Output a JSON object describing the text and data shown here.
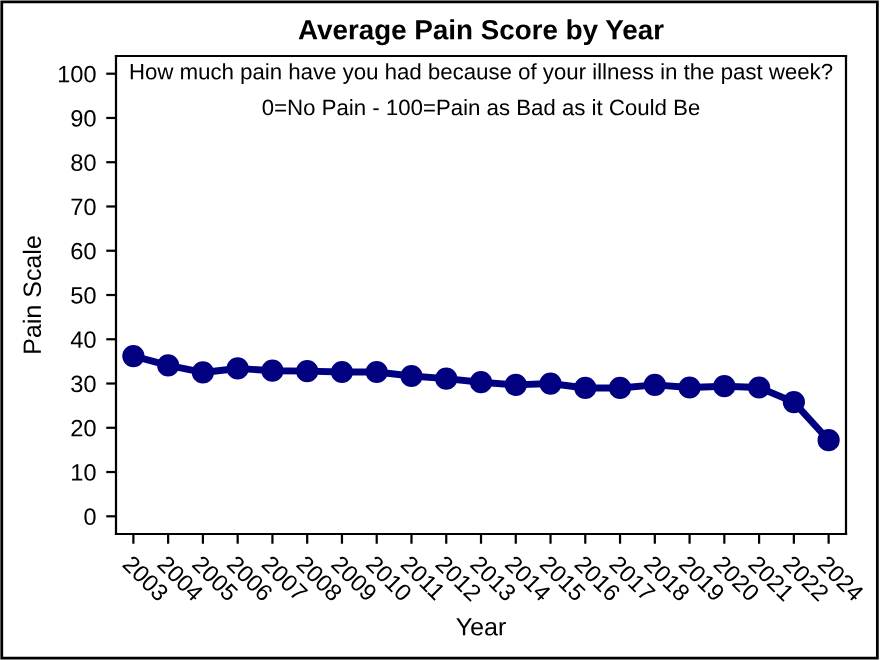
{
  "chart_data": {
    "type": "line",
    "title": "Average Pain Score by Year",
    "xlabel": "Year",
    "ylabel": "Pain Scale",
    "annotations": [
      "How much pain have you had because of your illness in the past week?",
      "0=No Pain - 100=Pain as Bad as it Could Be"
    ],
    "categories": [
      "2003",
      "2004",
      "2005",
      "2006",
      "2007",
      "2008",
      "2009",
      "2010",
      "2011",
      "2012",
      "2013",
      "2014",
      "2015",
      "2016",
      "2017",
      "2018",
      "2019",
      "2020",
      "2021",
      "2022",
      "2024"
    ],
    "series": [
      {
        "color": "#000080",
        "values": [
          36.2,
          34.1,
          32.5,
          33.4,
          32.9,
          32.8,
          32.6,
          32.6,
          31.7,
          31.1,
          30.3,
          29.7,
          30.0,
          29.0,
          29.0,
          29.7,
          29.1,
          29.4,
          29.1,
          25.8,
          17.2
        ]
      }
    ],
    "ylim": [
      -4,
      104
    ],
    "yticks": [
      0,
      10,
      20,
      30,
      40,
      50,
      60,
      70,
      80,
      90,
      100
    ],
    "marker": "circle",
    "line_style": "solid",
    "grid": false,
    "legend": false
  }
}
